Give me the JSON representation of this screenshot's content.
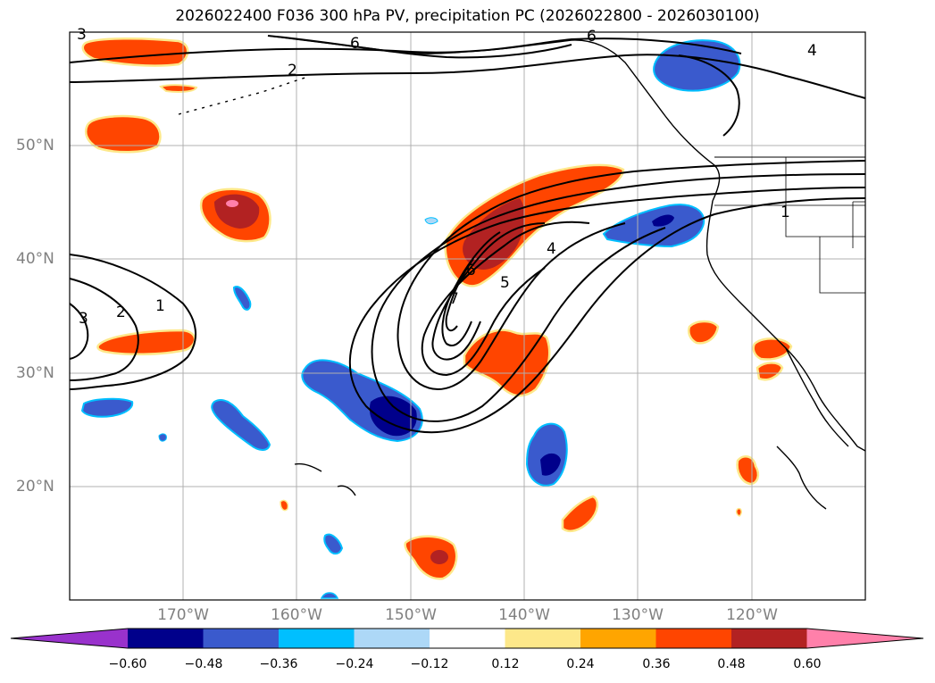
{
  "title": "2026022400 F036 300 hPa PV, precipitation PC (2026022800 - 2026030100)",
  "map": {
    "projection": "cylindrical",
    "lon_range": [
      -180,
      -110
    ],
    "lat_range": [
      10,
      60
    ],
    "grid": true,
    "lon_labels": [
      "170°W",
      "160°W",
      "150°W",
      "140°W",
      "130°W",
      "120°W"
    ],
    "lat_labels": [
      "50°N",
      "40°N",
      "30°N",
      "20°N"
    ],
    "pv_contour_labels": [
      "1",
      "2",
      "3",
      "4",
      "5",
      "6",
      "7",
      "1",
      "2",
      "3",
      "6",
      "6",
      "4"
    ]
  },
  "colorbar": {
    "ticks": [
      "−0.60",
      "−0.48",
      "−0.36",
      "−0.24",
      "−0.12",
      "0.12",
      "0.24",
      "0.36",
      "0.48",
      "0.60"
    ],
    "colors": [
      "#9932cc",
      "#00008b",
      "#3a5acd",
      "#00bfff",
      "#add8f7",
      "#ffffff",
      "#fde88a",
      "#ffa500",
      "#ff4500",
      "#b22222",
      "#ff80aa"
    ]
  }
}
